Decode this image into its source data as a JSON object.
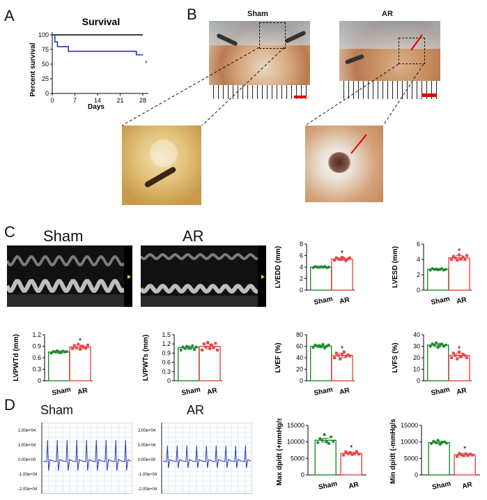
{
  "panels": {
    "a": {
      "letter": "A"
    },
    "b": {
      "letter": "B",
      "label_sham": "Sham",
      "label_ar": "AR"
    },
    "c": {
      "letter": "C",
      "label_sham": "Sham",
      "label_ar": "AR"
    },
    "d": {
      "letter": "D",
      "label_sham": "Sham",
      "label_ar": "AR",
      "ytick_labels": [
        "2.00e+04",
        "1.00e+04",
        "0.00e+00",
        "-1.00e+04",
        "-2.00e+04"
      ]
    }
  },
  "colors": {
    "sham": "#1e8a2e",
    "ar": "#e84545",
    "survival_sham": "#000000",
    "survival_ar": "#2233bb",
    "scale_bar": "#e00000",
    "ecg_line": "#2a3fb0",
    "ecg_grid": "#bfe0ee"
  },
  "chart_data": [
    {
      "id": "survival",
      "type": "line",
      "title": "Survival",
      "xlabel": "Days",
      "ylabel": "Percent survival",
      "xlim": [
        0,
        28
      ],
      "ylim": [
        0,
        100
      ],
      "xticks": [
        0,
        7,
        14,
        21,
        28
      ],
      "yticks": [
        0,
        25,
        50,
        75,
        100
      ],
      "series": [
        {
          "key": "sham",
          "x": [
            0,
            28
          ],
          "y": [
            100,
            100
          ]
        },
        {
          "key": "ar",
          "x": [
            0,
            0.8,
            0.8,
            1.6,
            1.6,
            5,
            5,
            26,
            26,
            28
          ],
          "y": [
            100,
            100,
            88,
            88,
            80,
            80,
            72,
            72,
            66,
            66
          ]
        }
      ],
      "markers": [
        {
          "x": 29,
          "y": 52,
          "label": "*"
        }
      ]
    },
    {
      "id": "lvedd",
      "type": "bar",
      "ylabel": "LVEDD (mm)",
      "categories": [
        "Sham",
        "AR"
      ],
      "values": [
        4.0,
        5.4
      ],
      "errors": [
        0.15,
        0.25
      ],
      "ylim": [
        0,
        8
      ],
      "yticks": [
        0,
        2,
        4,
        6,
        8
      ],
      "significance": [
        "",
        "*"
      ],
      "points": [
        [
          3.9,
          4.1,
          4.0,
          3.95,
          4.05,
          4.0,
          4.1,
          3.9,
          4.0
        ],
        [
          5.2,
          5.6,
          5.4,
          5.3,
          5.7,
          5.5,
          5.1,
          5.4,
          5.6
        ]
      ]
    },
    {
      "id": "lvesd",
      "type": "bar",
      "ylabel": "LVESD (mm)",
      "categories": [
        "Sham",
        "AR"
      ],
      "values": [
        2.7,
        4.2
      ],
      "errors": [
        0.12,
        0.3
      ],
      "ylim": [
        0,
        6
      ],
      "yticks": [
        0,
        2,
        4,
        6
      ],
      "significance": [
        "",
        "*"
      ],
      "points": [
        [
          2.6,
          2.8,
          2.7,
          2.75,
          2.65,
          2.7,
          2.8,
          2.6,
          2.7
        ],
        [
          4.0,
          4.4,
          4.2,
          3.9,
          4.6,
          4.1,
          4.3,
          4.0,
          4.5
        ]
      ]
    },
    {
      "id": "lvpwtd",
      "type": "bar",
      "ylabel": "LVPWTd (mm)",
      "categories": [
        "Sham",
        "AR"
      ],
      "values": [
        0.75,
        0.88
      ],
      "errors": [
        0.03,
        0.05
      ],
      "ylim": [
        0,
        1.2
      ],
      "yticks": [
        0.0,
        0.3,
        0.6,
        0.9,
        1.2
      ],
      "significance": [
        "",
        "*"
      ],
      "points": [
        [
          0.72,
          0.76,
          0.75,
          0.78,
          0.74,
          0.73,
          0.77,
          0.75,
          0.76
        ],
        [
          0.84,
          0.92,
          0.86,
          0.95,
          0.82,
          0.9,
          0.88,
          0.85,
          0.93
        ]
      ]
    },
    {
      "id": "lvpwts",
      "type": "bar",
      "ylabel": "LVPWTs (mm)",
      "categories": [
        "Sham",
        "AR"
      ],
      "values": [
        1.08,
        1.12
      ],
      "errors": [
        0.05,
        0.08
      ],
      "ylim": [
        0,
        1.5
      ],
      "yticks": [
        0.0,
        0.3,
        0.6,
        0.9,
        1.2,
        1.5
      ],
      "significance": [
        "",
        ""
      ],
      "points": [
        [
          1.0,
          1.1,
          1.05,
          1.12,
          1.08,
          1.06,
          1.14,
          1.02,
          1.1
        ],
        [
          1.0,
          1.2,
          1.1,
          1.25,
          1.05,
          1.15,
          1.08,
          1.22,
          1.0
        ]
      ]
    },
    {
      "id": "lvef",
      "type": "bar",
      "ylabel": "LVEF (%)",
      "categories": [
        "Sham",
        "AR"
      ],
      "values": [
        60,
        44
      ],
      "errors": [
        2,
        4
      ],
      "ylim": [
        0,
        80
      ],
      "yticks": [
        0,
        20,
        40,
        60,
        80
      ],
      "significance": [
        "",
        "*"
      ],
      "points": [
        [
          58,
          62,
          60,
          61,
          59,
          63,
          57,
          60,
          62
        ],
        [
          40,
          48,
          44,
          38,
          46,
          50,
          42,
          45,
          43
        ]
      ]
    },
    {
      "id": "lvfs",
      "type": "bar",
      "ylabel": "LVFS (%)",
      "categories": [
        "Sham",
        "AR"
      ],
      "values": [
        31,
        22
      ],
      "errors": [
        1.5,
        2
      ],
      "ylim": [
        0,
        40
      ],
      "yticks": [
        0,
        10,
        20,
        30,
        40
      ],
      "significance": [
        "",
        "*"
      ],
      "points": [
        [
          30,
          32,
          31,
          33,
          29,
          31,
          32,
          30,
          31
        ],
        [
          20,
          24,
          22,
          19,
          25,
          21,
          23,
          22,
          20
        ]
      ]
    },
    {
      "id": "maxdpdt",
      "type": "bar",
      "ylabel": "Max dp/dt (+mmHg/s)",
      "categories": [
        "Sham",
        "AR"
      ],
      "values": [
        10500,
        6500
      ],
      "errors": [
        600,
        400
      ],
      "ylim": [
        0,
        15000
      ],
      "yticks": [
        0,
        5000,
        10000,
        15000
      ],
      "significance": [
        "",
        "*"
      ],
      "points": [
        [
          9800,
          11000,
          10500,
          12200,
          10000,
          9500,
          11500,
          10200
        ],
        [
          6000,
          7000,
          6500,
          6800,
          6200,
          6400,
          7100,
          6300
        ]
      ]
    },
    {
      "id": "mindpdt",
      "type": "bar",
      "ylabel": "Min dp/dt (-mmHg/s)",
      "categories": [
        "Sham",
        "AR"
      ],
      "values": [
        9800,
        6100
      ],
      "errors": [
        400,
        400
      ],
      "ylim": [
        0,
        15000
      ],
      "yticks": [
        0,
        5000,
        10000,
        15000
      ],
      "significance": [
        "",
        "*"
      ],
      "points": [
        [
          9500,
          10200,
          9800,
          10500,
          9300,
          9900,
          10000,
          9600
        ],
        [
          5600,
          6500,
          6100,
          5800,
          6400,
          5900,
          6300,
          6000
        ]
      ]
    }
  ]
}
